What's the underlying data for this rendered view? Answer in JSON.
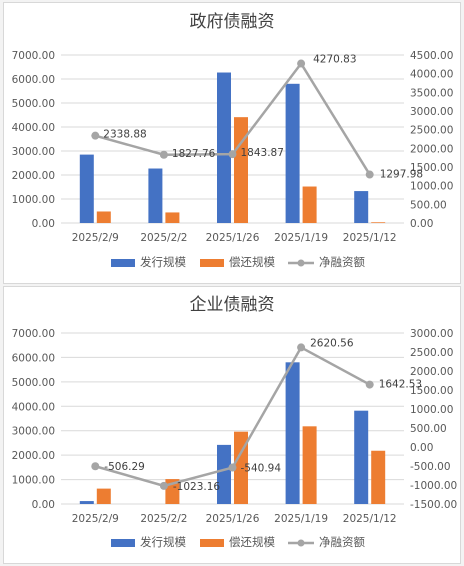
{
  "colors": {
    "issue": "#4472C4",
    "repay": "#ED7D31",
    "net": "#A5A5A5",
    "grid": "#D9D9D9",
    "axis_text": "#595959",
    "title_text": "#404040"
  },
  "chart_data": [
    {
      "type": "bar",
      "title": "政府债融资",
      "categories": [
        "2025/2/9",
        "2025/2/2",
        "2025/1/26",
        "2025/1/19",
        "2025/1/12"
      ],
      "series": [
        {
          "name": "发行规模",
          "type": "bar",
          "axis": "left",
          "values": [
            2850,
            2270,
            6270,
            5800,
            1330
          ]
        },
        {
          "name": "偿还规模",
          "type": "bar",
          "axis": "left",
          "values": [
            480,
            440,
            4410,
            1520,
            30
          ]
        },
        {
          "name": "净融资额",
          "type": "line",
          "axis": "right",
          "values": [
            2338.88,
            1827.76,
            1843.87,
            4270.83,
            1297.98
          ]
        }
      ],
      "data_labels": [
        "2338.88",
        "1827.76",
        "1843.87",
        "4270.83",
        "1297.98"
      ],
      "y_left": {
        "min": 0,
        "max": 7000,
        "step": 1000,
        "ticks": [
          "0.00",
          "1000.00",
          "2000.00",
          "3000.00",
          "4000.00",
          "5000.00",
          "6000.00",
          "7000.00"
        ]
      },
      "y_right": {
        "min": 0,
        "max": 4500,
        "step": 500,
        "ticks": [
          "0.00",
          "500.00",
          "1000.00",
          "1500.00",
          "2000.00",
          "2500.00",
          "3000.00",
          "3500.00",
          "4000.00",
          "4500.00"
        ]
      },
      "grid": true,
      "legend_position": "bottom"
    },
    {
      "type": "bar",
      "title": "企业债融资",
      "categories": [
        "2025/2/9",
        "2025/2/2",
        "2025/1/26",
        "2025/1/19",
        "2025/1/12"
      ],
      "series": [
        {
          "name": "发行规模",
          "type": "bar",
          "axis": "left",
          "values": [
            120,
            0,
            2420,
            5800,
            3820
          ]
        },
        {
          "name": "偿还规模",
          "type": "bar",
          "axis": "left",
          "values": [
            630,
            1020,
            2960,
            3180,
            2180
          ]
        },
        {
          "name": "净融资额",
          "type": "line",
          "axis": "right",
          "values": [
            -506.29,
            -1023.16,
            -540.94,
            2620.56,
            1642.53
          ]
        }
      ],
      "data_labels": [
        "-506.29",
        "-1023.16",
        "-540.94",
        "2620.56",
        "1642.53"
      ],
      "y_left": {
        "min": 0,
        "max": 7000,
        "step": 1000,
        "ticks": [
          "0.00",
          "1000.00",
          "2000.00",
          "3000.00",
          "4000.00",
          "5000.00",
          "6000.00",
          "7000.00"
        ]
      },
      "y_right": {
        "min": -1500,
        "max": 3000,
        "step": 500,
        "ticks": [
          "-1500.00",
          "-1000.00",
          "-500.00",
          "0.00",
          "500.00",
          "1000.00",
          "1500.00",
          "2000.00",
          "2500.00",
          "3000.00"
        ]
      },
      "grid": true,
      "legend_position": "bottom"
    }
  ]
}
